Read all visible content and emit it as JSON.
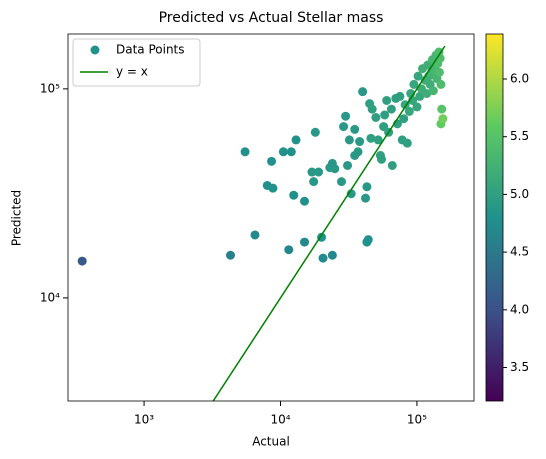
{
  "chart_data": {
    "type": "scatter",
    "title": "Predicted vs Actual Stellar mass",
    "x_label": "Actual",
    "y_label": "Predicted",
    "xscale": "log",
    "yscale": "log",
    "xlim": [
      277,
      262000
    ],
    "ylim": [
      3213,
      183000
    ],
    "xticks": [
      {
        "value": 1000,
        "label": "10³"
      },
      {
        "value": 10000,
        "label": "10⁴"
      },
      {
        "value": 100000,
        "label": "10⁵"
      }
    ],
    "yticks": [
      {
        "value": 10000,
        "label": "10⁴"
      },
      {
        "value": 100000,
        "label": "10⁵"
      }
    ],
    "grid": false,
    "legend": "upper left",
    "colormap": "viridis",
    "clim": [
      3.21,
      6.39
    ],
    "cticks": [
      3.5,
      {
        "value": 4,
        "label": "4.0"
      },
      4.5,
      {
        "value": 5,
        "label": "5.0"
      },
      5.5,
      {
        "value": 6,
        "label": "6.0"
      }
    ],
    "series": [
      {
        "name": "Data Points",
        "type": "scatter",
        "color": "#21918c",
        "x": [
          352,
          4300,
          5500,
          6500,
          8000,
          8800,
          8600,
          10500,
          11500,
          12000,
          12500,
          13000,
          15000,
          15000,
          17000,
          17500,
          18000,
          19000,
          20000,
          20500,
          24000,
          23000,
          24000,
          25000,
          28000,
          29000,
          30000,
          31000,
          32000,
          33000,
          35000,
          35000,
          37000,
          38000,
          40000,
          42000,
          43000,
          43000,
          44000,
          45000,
          46000,
          47000,
          50000,
          52000,
          54000,
          55000,
          57000,
          58000,
          60000,
          62000,
          65000,
          66000,
          70000,
          72000,
          75000,
          78000,
          80000,
          82000,
          85000,
          88000,
          90000,
          93000,
          95000,
          100000,
          102000,
          105000,
          108000,
          110000,
          115000,
          118000,
          120000,
          122000,
          125000,
          128000,
          130000,
          132000,
          135000,
          138000,
          140000,
          142000,
          145000,
          148000,
          150000,
          152000,
          155000,
          146000,
          150000
        ],
        "values": [
          15000,
          16000,
          50000,
          20000,
          34500,
          33500,
          45000,
          50000,
          17000,
          50000,
          31000,
          57000,
          29000,
          18500,
          40000,
          36000,
          62000,
          40000,
          19500,
          15500,
          16000,
          42000,
          44000,
          41500,
          36000,
          66000,
          74000,
          43000,
          57000,
          31500,
          48000,
          64000,
          50000,
          56000,
          97000,
          30000,
          34000,
          18500,
          19000,
          85000,
          58000,
          80000,
          73000,
          57000,
          48000,
          46000,
          66000,
          75000,
          88000,
          62000,
          80000,
          43000,
          90000,
          68000,
          92000,
          57000,
          72000,
          84000,
          55000,
          78000,
          95000,
          88000,
          105000,
          82000,
          115000,
          92000,
          100000,
          125000,
          110000,
          95000,
          130000,
          115000,
          105000,
          120000,
          138000,
          98000,
          125000,
          145000,
          112000,
          132000,
          150000,
          140000,
          68000,
          80000,
          72000,
          120000,
          105000
        ],
        "c": [
          4.1,
          4.6,
          4.8,
          4.7,
          4.8,
          4.8,
          4.8,
          4.8,
          4.7,
          4.8,
          4.8,
          4.8,
          4.8,
          4.7,
          4.9,
          4.9,
          4.9,
          4.9,
          4.8,
          4.7,
          4.7,
          4.9,
          4.9,
          4.9,
          4.9,
          4.9,
          4.9,
          4.9,
          4.9,
          4.9,
          4.9,
          4.9,
          4.9,
          4.9,
          4.9,
          4.9,
          4.9,
          4.8,
          4.8,
          5.0,
          5.0,
          5.0,
          5.0,
          5.0,
          5.0,
          5.0,
          5.0,
          5.0,
          5.0,
          5.0,
          5.0,
          5.0,
          5.0,
          5.0,
          5.0,
          5.0,
          5.0,
          5.1,
          5.0,
          5.1,
          5.1,
          5.1,
          5.1,
          5.1,
          5.1,
          5.1,
          5.2,
          5.2,
          5.2,
          5.2,
          5.2,
          5.2,
          5.2,
          5.3,
          5.3,
          5.3,
          5.3,
          5.3,
          5.3,
          5.4,
          5.4,
          5.4,
          5.6,
          5.5,
          5.7,
          5.4,
          5.4
        ]
      },
      {
        "name": "y = x",
        "type": "line",
        "color": "#008000",
        "x": [
          3213,
          160000
        ],
        "values": [
          3213,
          160000
        ]
      }
    ]
  }
}
